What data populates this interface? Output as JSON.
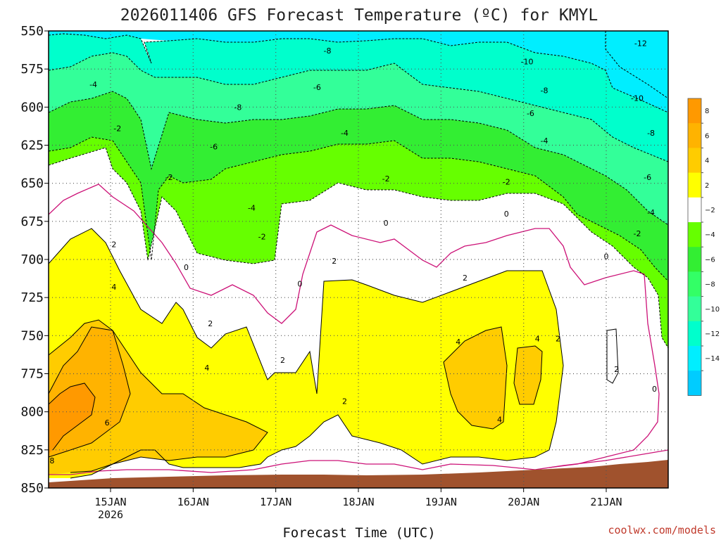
{
  "chart_data": {
    "type": "heatmap",
    "title": "2026011406 GFS Forecast Temperature (ºC) for KMYL",
    "xlabel": "Forecast Time (UTC)",
    "credit": "coolwx.com/models",
    "y_axis": {
      "label": "",
      "ticks": [
        "550",
        "575",
        "600",
        "625",
        "650",
        "675",
        "700",
        "725",
        "750",
        "775",
        "800",
        "825",
        "850"
      ],
      "range": [
        550,
        850
      ],
      "inverted": true
    },
    "x_axis": {
      "ticks": [
        {
          "label": "15JAN",
          "sub": "2026",
          "hour": 18
        },
        {
          "label": "16JAN",
          "sub": "",
          "hour": 42
        },
        {
          "label": "17JAN",
          "sub": "",
          "hour": 66
        },
        {
          "label": "18JAN",
          "sub": "",
          "hour": 90
        },
        {
          "label": "19JAN",
          "sub": "",
          "hour": 114
        },
        {
          "label": "20JAN",
          "sub": "",
          "hour": 138
        },
        {
          "label": "21JAN",
          "sub": "",
          "hour": 162
        }
      ],
      "range_hours": [
        0,
        180
      ]
    },
    "grid": true,
    "colorbar": {
      "ticks": [
        "8",
        "6",
        "4",
        "2",
        "−2",
        "−4",
        "−6",
        "−8",
        "−10",
        "−12",
        "−14"
      ],
      "bands": [
        {
          "value": 9,
          "color": "#ff9900"
        },
        {
          "value": 7,
          "color": "#ffb300"
        },
        {
          "value": 5,
          "color": "#ffcc00"
        },
        {
          "value": 3,
          "color": "#ffff00"
        },
        {
          "value": 0,
          "color": "#ffffff"
        },
        {
          "value": -3,
          "color": "#66ff00"
        },
        {
          "value": -5,
          "color": "#33ee33"
        },
        {
          "value": -7,
          "color": "#33ff66"
        },
        {
          "value": -9,
          "color": "#33ff99"
        },
        {
          "value": -11,
          "color": "#00ffcc"
        },
        {
          "value": -13,
          "color": "#00eeff"
        },
        {
          "value": -15,
          "color": "#00ccff"
        }
      ]
    },
    "contour_labels": [
      {
        "text": "-12",
        "hour": 172,
        "p": 558
      },
      {
        "text": "-10",
        "hour": 139,
        "p": 570
      },
      {
        "text": "-8",
        "hour": 81,
        "p": 563
      },
      {
        "text": "-8",
        "hour": 144,
        "p": 589
      },
      {
        "text": "-10",
        "hour": 171,
        "p": 594
      },
      {
        "text": "-8",
        "hour": 55,
        "p": 600
      },
      {
        "text": "-8",
        "hour": 175,
        "p": 617
      },
      {
        "text": "-6",
        "hour": 78,
        "p": 587
      },
      {
        "text": "-6",
        "hour": 140,
        "p": 604
      },
      {
        "text": "-4",
        "hour": 13,
        "p": 585
      },
      {
        "text": "-6",
        "hour": 48,
        "p": 626
      },
      {
        "text": "-4",
        "hour": 86,
        "p": 617
      },
      {
        "text": "-4",
        "hour": 144,
        "p": 622
      },
      {
        "text": "-6",
        "hour": 174,
        "p": 646
      },
      {
        "text": "-2",
        "hour": 20,
        "p": 614
      },
      {
        "text": "-2",
        "hour": 35,
        "p": 646
      },
      {
        "text": "-4",
        "hour": 59,
        "p": 666
      },
      {
        "text": "-2",
        "hour": 98,
        "p": 647
      },
      {
        "text": "-2",
        "hour": 133,
        "p": 649
      },
      {
        "text": "-4",
        "hour": 175,
        "p": 669
      },
      {
        "text": "-2",
        "hour": 62,
        "p": 685
      },
      {
        "text": "-2",
        "hour": 171,
        "p": 683
      },
      {
        "text": "0",
        "hour": 98,
        "p": 676
      },
      {
        "text": "0",
        "hour": 133,
        "p": 670
      },
      {
        "text": "2",
        "hour": 19,
        "p": 690
      },
      {
        "text": "2",
        "hour": 83,
        "p": 701
      },
      {
        "text": "0",
        "hour": 40,
        "p": 705
      },
      {
        "text": "0",
        "hour": 73,
        "p": 716
      },
      {
        "text": "0",
        "hour": 162,
        "p": 698
      },
      {
        "text": "4",
        "hour": 19,
        "p": 718
      },
      {
        "text": "2",
        "hour": 121,
        "p": 712
      },
      {
        "text": "2",
        "hour": 47,
        "p": 742
      },
      {
        "text": "4",
        "hour": 119,
        "p": 754
      },
      {
        "text": "4",
        "hour": 142,
        "p": 752
      },
      {
        "text": "2",
        "hour": 148,
        "p": 752
      },
      {
        "text": "2",
        "hour": 68,
        "p": 766
      },
      {
        "text": "4",
        "hour": 46,
        "p": 771
      },
      {
        "text": "2",
        "hour": 165,
        "p": 772
      },
      {
        "text": "0",
        "hour": 176,
        "p": 785
      },
      {
        "text": "2",
        "hour": 86,
        "p": 793
      },
      {
        "text": "4",
        "hour": 131,
        "p": 805
      },
      {
        "text": "6",
        "hour": 17,
        "p": 807
      },
      {
        "text": "8",
        "hour": 1,
        "p": 832
      }
    ]
  }
}
